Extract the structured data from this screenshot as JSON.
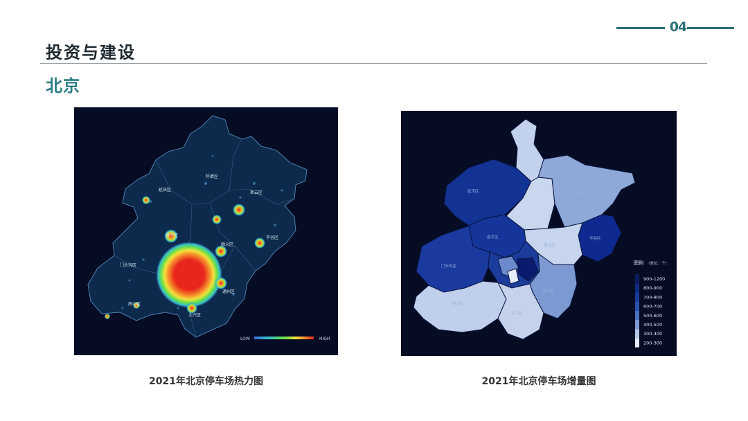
{
  "header": {
    "page_number": "04",
    "section_title": "投资与建设",
    "subsection_title": "北京",
    "accent_color": "#2e7d86"
  },
  "heat_map": {
    "caption": "2021年北京停车场热力图",
    "districts": [
      "怀柔区",
      "延庆区",
      "密云区",
      "平谷区",
      "顺义区",
      "昌平区",
      "门头沟区",
      "房山区",
      "大兴区",
      "通州区"
    ],
    "legend_low": "LOW",
    "legend_high": "HIGH",
    "background_color": "#050c24",
    "gradient_colors": [
      "#3a6fd8",
      "#35c0c8",
      "#6be04a",
      "#f3e23a",
      "#f58a2a",
      "#e8261c"
    ]
  },
  "choropleth_map": {
    "caption": "2021年北京停车场增量图",
    "legend_title": "图例",
    "legend_unit": "（单位：个）",
    "background_color": "#050c24",
    "legend_items": [
      {
        "label": "900-1200",
        "color": "#0a1a5c"
      },
      {
        "label": "800-900",
        "color": "#0f2a80"
      },
      {
        "label": "700-800",
        "color": "#1a3a9a"
      },
      {
        "label": "600-700",
        "color": "#2a52b0"
      },
      {
        "label": "500-600",
        "color": "#4a70c2"
      },
      {
        "label": "400-500",
        "color": "#7c99d2"
      },
      {
        "label": "300-400",
        "color": "#b4c6e6"
      },
      {
        "label": "200-300",
        "color": "#e4ecf8"
      }
    ]
  }
}
